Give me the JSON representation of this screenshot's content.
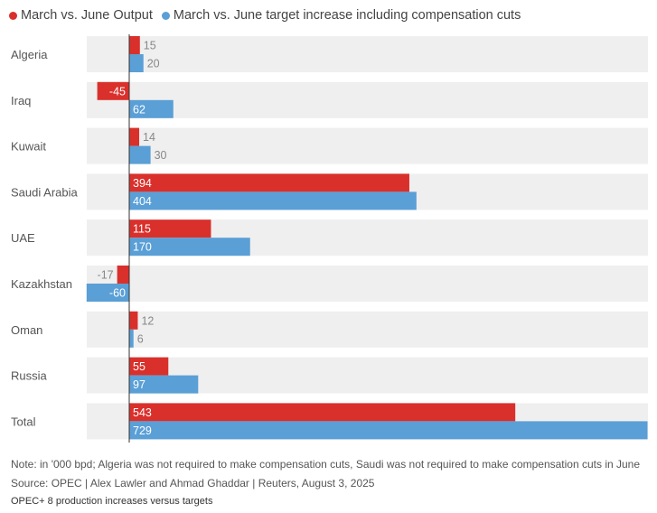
{
  "colors": {
    "output": "#d9302c",
    "target": "#5a9fd6",
    "row_background": "#efefef",
    "axis": "#333333",
    "value_text_inside": "#ffffff",
    "value_text_outside": "#888888",
    "category_text": "#555555"
  },
  "legend": {
    "output_label": "March vs. June Output",
    "target_label": "March vs. June target increase including compensation cuts"
  },
  "chart_data": {
    "type": "bar",
    "orientation": "horizontal",
    "title": "OPEC+ 8 production increases versus targets",
    "units": "'000 bpd",
    "categories": [
      "Algeria",
      "Iraq",
      "Kuwait",
      "Saudi Arabia",
      "UAE",
      "Kazakhstan",
      "Oman",
      "Russia",
      "Total"
    ],
    "series": [
      {
        "name": "March vs. June Output",
        "values": [
          15,
          -45,
          14,
          394,
          115,
          -17,
          12,
          55,
          543
        ]
      },
      {
        "name": "March vs. June target increase including compensation cuts",
        "values": [
          20,
          62,
          30,
          404,
          170,
          -60,
          6,
          97,
          729
        ]
      }
    ],
    "xlim": [
      -60,
      729
    ],
    "grid": false,
    "legend_position": "top-left"
  },
  "footer": {
    "note": "Note: in '000 bpd; Algeria was not required to make compensation cuts, Saudi was not required to make compensation cuts in June",
    "source": "Source: OPEC  | Alex Lawler and Ahmad Ghaddar | Reuters, August 3, 2025",
    "title": "OPEC+ 8 production increases versus targets"
  }
}
